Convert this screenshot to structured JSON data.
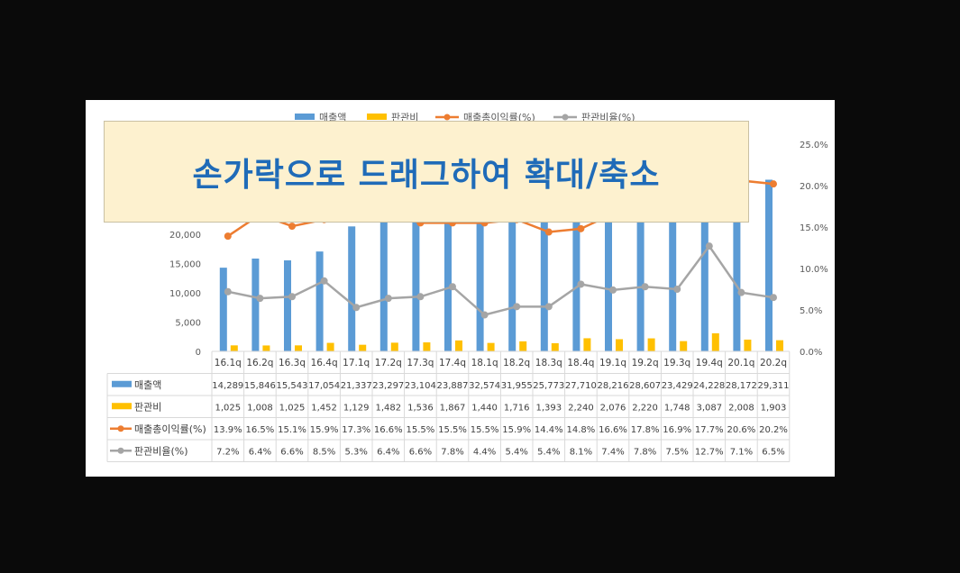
{
  "overlay": {
    "text": "손가락으로 드래그하여 확대/축소"
  },
  "chart_data": {
    "type": "bar",
    "categories": [
      "16.1q",
      "16.2q",
      "16.3q",
      "16.4q",
      "17.1q",
      "17.2q",
      "17.3q",
      "17.4q",
      "18.1q",
      "18.2q",
      "18.3q",
      "18.4q",
      "19.1q",
      "19.2q",
      "19.3q",
      "19.4q",
      "20.1q",
      "20.2q"
    ],
    "series": [
      {
        "name": "매출액",
        "kind": "bar",
        "axis": "left",
        "color": "#5b9bd5",
        "values": [
          14289,
          15846,
          15543,
          17054,
          21337,
          23297,
          23104,
          23887,
          32574,
          31955,
          25773,
          27710,
          28216,
          28607,
          23429,
          24228,
          28172,
          29311
        ],
        "labels": [
          "14,289",
          "15,846",
          "15,543",
          "17,054",
          "21,337",
          "23,297",
          "23,104",
          "23,887",
          "32,574",
          "31,955",
          "25,773",
          "27,710",
          "28,216",
          "28,607",
          "23,429",
          "24,228",
          "28,172",
          "29,311"
        ]
      },
      {
        "name": "판관비",
        "kind": "bar",
        "axis": "left",
        "color": "#ffc000",
        "values": [
          1025,
          1008,
          1025,
          1452,
          1129,
          1482,
          1536,
          1867,
          1440,
          1716,
          1393,
          2240,
          2076,
          2220,
          1748,
          3087,
          2008,
          1903
        ],
        "labels": [
          "1,025",
          "1,008",
          "1,025",
          "1,452",
          "1,129",
          "1,482",
          "1,536",
          "1,867",
          "1,440",
          "1,716",
          "1,393",
          "2,240",
          "2,076",
          "2,220",
          "1,748",
          "3,087",
          "2,008",
          "1,903"
        ]
      },
      {
        "name": "매출총이익률(%)",
        "kind": "line",
        "axis": "right",
        "color": "#ed7d31",
        "values": [
          13.9,
          16.5,
          15.1,
          15.9,
          17.3,
          16.6,
          15.5,
          15.5,
          15.5,
          15.9,
          14.4,
          14.8,
          16.6,
          17.8,
          16.9,
          17.7,
          20.6,
          20.2
        ],
        "labels": [
          "13.9%",
          "16.5%",
          "15.1%",
          "15.9%",
          "17.3%",
          "16.6%",
          "15.5%",
          "15.5%",
          "15.5%",
          "15.9%",
          "14.4%",
          "14.8%",
          "16.6%",
          "17.8%",
          "16.9%",
          "17.7%",
          "20.6%",
          "20.2%"
        ]
      },
      {
        "name": "판관비율(%)",
        "kind": "line",
        "axis": "right",
        "color": "#a5a5a5",
        "values": [
          7.2,
          6.4,
          6.6,
          8.5,
          5.3,
          6.4,
          6.6,
          7.8,
          4.4,
          5.4,
          5.4,
          8.1,
          7.4,
          7.8,
          7.5,
          12.7,
          7.1,
          6.5
        ],
        "labels": [
          "7.2%",
          "6.4%",
          "6.6%",
          "8.5%",
          "5.3%",
          "6.4%",
          "6.6%",
          "7.8%",
          "4.4%",
          "5.4%",
          "5.4%",
          "8.1%",
          "7.4%",
          "7.8%",
          "7.5%",
          "12.7%",
          "7.1%",
          "6.5%"
        ]
      }
    ],
    "left_axis": {
      "ylim": [
        0,
        35000
      ],
      "ticks": [
        "0",
        "5,000",
        "10,000",
        "15,000",
        "20,000"
      ],
      "tick_values": [
        0,
        5000,
        10000,
        15000,
        20000
      ]
    },
    "right_axis": {
      "ylim": [
        0,
        25
      ],
      "ticks": [
        "0.0%",
        "5.0%",
        "10.0%",
        "15.0%",
        "20.0%",
        "25.0%"
      ],
      "tick_values": [
        0,
        5,
        10,
        15,
        20,
        25
      ]
    },
    "legend": {
      "placement": "top",
      "entries": [
        "매출액",
        "판관비",
        "매출총이익률(%)",
        "판관비율(%)"
      ]
    },
    "grid": false,
    "data_table": true
  }
}
